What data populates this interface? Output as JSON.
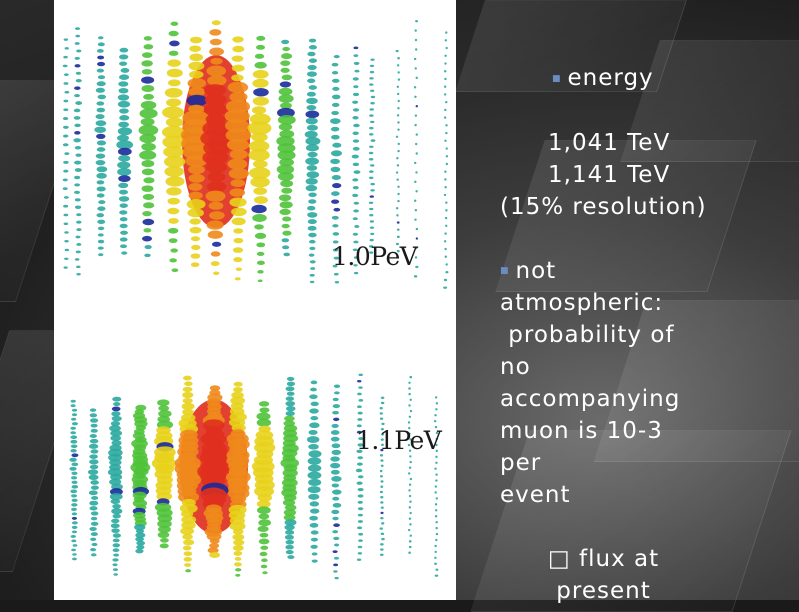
{
  "events": [
    {
      "label": "1.0PeV"
    },
    {
      "label": "1.1PeV"
    }
  ],
  "notes": {
    "energy_heading": "energy",
    "energy_values": [
      "1,041 TeV",
      "1,141 TeV",
      "(15% resolution)"
    ],
    "atm_lines": [
      "not",
      "atmospheric:",
      " probability of",
      "no",
      "accompanying",
      "muon is 10-3",
      "per",
      "event"
    ],
    "flux_lines": [
      "□ flux at",
      " present"
    ]
  },
  "colors": {
    "bullet": "#6a8cc0",
    "text": "#ffffff",
    "red": "#e0301e",
    "orange": "#f08a1c",
    "yellow": "#e8d21a",
    "green": "#4fc23a",
    "teal": "#2aa8a0",
    "blue": "#1a2a9a"
  }
}
